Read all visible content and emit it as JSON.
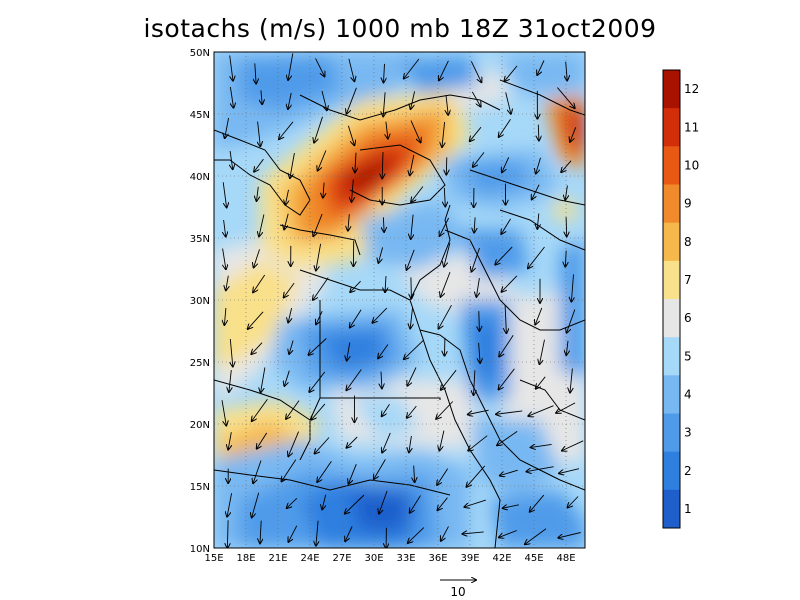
{
  "title": "isotachs (m/s) 1000 mb 18Z 31oct2009",
  "lat_labels": [
    "50N",
    "45N",
    "40N",
    "35N",
    "30N",
    "25N",
    "20N",
    "15N",
    "10N"
  ],
  "lon_labels": [
    "15E",
    "18E",
    "21E",
    "24E",
    "27E",
    "30E",
    "33E",
    "36E",
    "39E",
    "42E",
    "45E",
    "48E"
  ],
  "colorbar": {
    "levels": [
      "1",
      "2",
      "3",
      "4",
      "5",
      "6",
      "7",
      "8",
      "9",
      "10",
      "11",
      "12"
    ],
    "colors": [
      "#1e5fcc",
      "#2f7fe0",
      "#4f9bea",
      "#78b8f2",
      "#a6d8f8",
      "#e6e6e6",
      "#f9e08a",
      "#f6b84a",
      "#f08a2a",
      "#e85a14",
      "#d22e0a",
      "#a81200"
    ]
  },
  "vector_scale": {
    "label": "10",
    "unit_arrow": true
  },
  "extent": {
    "lon_min": 15,
    "lon_max": 50,
    "lat_min": 10,
    "lat_max": 50
  }
}
